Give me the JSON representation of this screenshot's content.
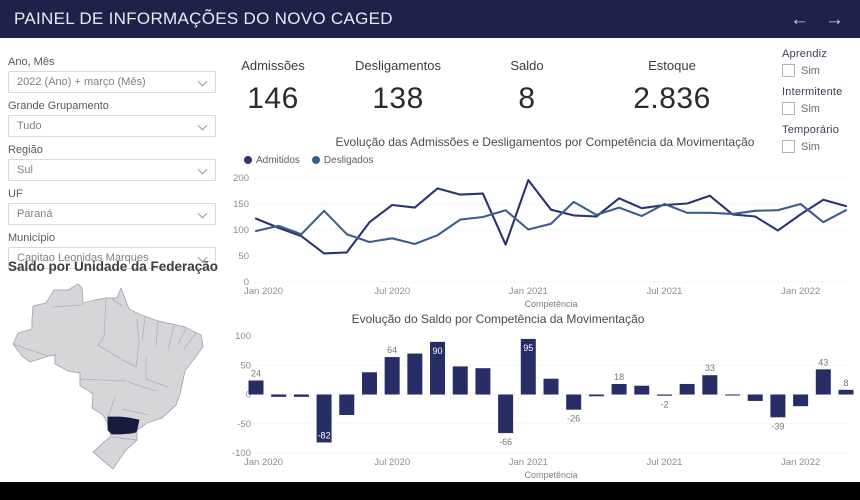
{
  "header": {
    "title": "PAINEL DE INFORMAÇÕES DO NOVO CAGED",
    "nav_back": "←",
    "nav_forward": "→"
  },
  "filters": [
    {
      "label": "Ano, Mês",
      "value": "2022 (Ano) + março (Mês)"
    },
    {
      "label": "Grande Grupamento",
      "value": "Tudo"
    },
    {
      "label": "Região",
      "value": "Sul"
    },
    {
      "label": "UF",
      "value": "Paraná"
    },
    {
      "label": "Município",
      "value": "Capitao Leonidas Marques"
    }
  ],
  "kpis": [
    {
      "label": "Admissões",
      "value": "146"
    },
    {
      "label": "Desligamentos",
      "value": "138"
    },
    {
      "label": "Saldo",
      "value": "8"
    },
    {
      "label": "Estoque",
      "value": "2.836"
    }
  ],
  "toggles": [
    {
      "label": "Aprendiz",
      "option": "Sim",
      "checked": false
    },
    {
      "label": "Intermitente",
      "option": "Sim",
      "checked": false
    },
    {
      "label": "Temporário",
      "option": "Sim",
      "checked": false
    }
  ],
  "map": {
    "title": "Saldo por Unidade da Federação",
    "highlighted_state": "Paraná",
    "land_color": "#d6d6d8",
    "border_color": "#a2aab6",
    "highlight_color": "#171b3e"
  },
  "chart_data": [
    {
      "type": "line",
      "title": "Evolução das Admissões e Desligamentos por Competência da Movimentação",
      "xlabel": "Competência",
      "x_ticks": [
        "Jan 2020",
        "Jul 2020",
        "Jan 2021",
        "Jul 2021",
        "Jan 2022"
      ],
      "x_tick_indices": [
        0,
        6,
        12,
        18,
        24
      ],
      "x_count": 27,
      "y_ticks": [
        0,
        50,
        100,
        150,
        200
      ],
      "ylim": [
        0,
        200
      ],
      "grid": "dotted",
      "legend_position": "top-left",
      "series": [
        {
          "name": "Admitidos",
          "color": "#2c3372",
          "values": [
            122,
            104,
            88,
            55,
            57,
            115,
            148,
            143,
            180,
            168,
            170,
            72,
            196,
            139,
            128,
            126,
            161,
            142,
            148,
            151,
            166,
            130,
            126,
            99,
            130,
            158,
            146
          ]
        },
        {
          "name": "Desligados",
          "color": "#3d5e8c",
          "values": [
            98,
            108,
            92,
            137,
            92,
            77,
            84,
            73,
            90,
            120,
            125,
            138,
            101,
            112,
            154,
            129,
            143,
            127,
            150,
            133,
            133,
            131,
            137,
            138,
            150,
            115,
            138
          ]
        }
      ]
    },
    {
      "type": "bar",
      "title": "Evolução do Saldo por Competência da Movimentação",
      "xlabel": "Competência",
      "x_ticks": [
        "Jan 2020",
        "Jul 2020",
        "Jan 2021",
        "Jul 2021",
        "Jan 2022"
      ],
      "x_tick_indices": [
        0,
        6,
        12,
        18,
        24
      ],
      "y_ticks": [
        -100,
        -50,
        0,
        50,
        100
      ],
      "ylim": [
        -100,
        100
      ],
      "bar_color": "#272e66",
      "values": [
        24,
        -4,
        -4,
        -82,
        -35,
        38,
        64,
        70,
        90,
        48,
        45,
        -66,
        95,
        27,
        -26,
        -3,
        18,
        15,
        -2,
        18,
        33,
        -1,
        -11,
        -39,
        -20,
        43,
        8
      ],
      "value_labels": [
        {
          "index": 0,
          "text": "24",
          "placement": "out"
        },
        {
          "index": 3,
          "text": "-82",
          "placement": "in"
        },
        {
          "index": 6,
          "text": "64",
          "placement": "out"
        },
        {
          "index": 8,
          "text": "90",
          "placement": "in"
        },
        {
          "index": 11,
          "text": "-66",
          "placement": "out"
        },
        {
          "index": 12,
          "text": "95",
          "placement": "in"
        },
        {
          "index": 14,
          "text": "-26",
          "placement": "out"
        },
        {
          "index": 16,
          "text": "18",
          "placement": "out"
        },
        {
          "index": 18,
          "text": "-2",
          "placement": "out"
        },
        {
          "index": 20,
          "text": "33",
          "placement": "out"
        },
        {
          "index": 23,
          "text": "-39",
          "placement": "out"
        },
        {
          "index": 25,
          "text": "43",
          "placement": "out"
        },
        {
          "index": 26,
          "text": "8",
          "placement": "out"
        }
      ]
    }
  ]
}
